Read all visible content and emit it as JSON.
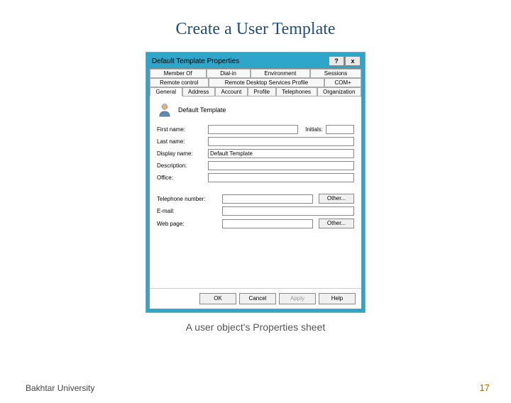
{
  "slide": {
    "title": "Create a User Template",
    "caption": "A user object's Properties sheet",
    "footer_left": "Bakhtar University",
    "page_number": "17"
  },
  "dialog": {
    "title": "Default Template Properties",
    "help_glyph": "?",
    "close_glyph": "x",
    "tab_rows": [
      [
        {
          "label": "Member Of"
        },
        {
          "label": "Dial-in"
        },
        {
          "label": "Environment"
        },
        {
          "label": "Sessions"
        }
      ],
      [
        {
          "label": "Remote control"
        },
        {
          "label": "Remote Desktop Services Profile",
          "wide": true
        },
        {
          "label": "COM+"
        }
      ],
      [
        {
          "label": "General",
          "active": true
        },
        {
          "label": "Address"
        },
        {
          "label": "Account"
        },
        {
          "label": "Profile"
        },
        {
          "label": "Telephones"
        },
        {
          "label": "Organization"
        }
      ]
    ],
    "user_display": "Default Template",
    "fields": {
      "first_name_label": "First name:",
      "first_name_value": "",
      "initials_label": "Initials:",
      "initials_value": "",
      "last_name_label": "Last name:",
      "last_name_value": "",
      "display_name_label": "Display name:",
      "display_name_value": "Default Template",
      "description_label": "Description:",
      "description_value": "",
      "office_label": "Office:",
      "office_value": "",
      "telephone_label": "Telephone number:",
      "telephone_value": "",
      "email_label": "E-mail:",
      "email_value": "",
      "webpage_label": "Web page:",
      "webpage_value": "",
      "other_btn": "Other..."
    },
    "buttons": {
      "ok": "OK",
      "cancel": "Cancel",
      "apply": "Apply",
      "help": "Help"
    }
  },
  "colors": {
    "title_color": "#1f4e79",
    "window_chrome": "#2ea6c9",
    "page_number": "#b36b00"
  }
}
